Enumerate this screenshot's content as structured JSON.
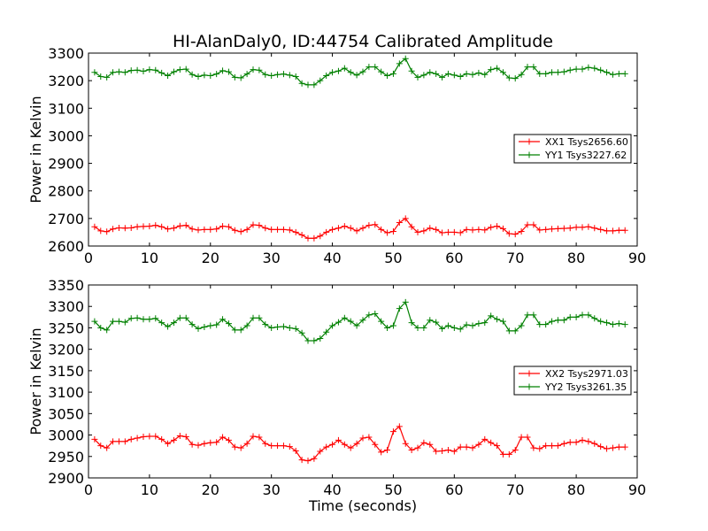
{
  "figure": {
    "title": "HI-AlanDaly0, ID:44754 Calibrated Amplitude",
    "xlabel": "Time (seconds)"
  },
  "chart_data": [
    {
      "type": "line",
      "title": "HI-AlanDaly0, ID:44754 Calibrated Amplitude",
      "xlabel": "",
      "ylabel": "Power in Kelvin",
      "xlim": [
        0,
        90
      ],
      "ylim": [
        2600,
        3300
      ],
      "xticks": [
        "0",
        "10",
        "20",
        "30",
        "40",
        "50",
        "60",
        "70",
        "80",
        "90"
      ],
      "yticks": [
        "2600",
        "2700",
        "2800",
        "2900",
        "3000",
        "3100",
        "3200",
        "3300"
      ],
      "grid": false,
      "legend_position": "right",
      "x": [
        1,
        2,
        3,
        4,
        5,
        6,
        7,
        8,
        9,
        10,
        11,
        12,
        13,
        14,
        15,
        16,
        17,
        18,
        19,
        20,
        21,
        22,
        23,
        24,
        25,
        26,
        27,
        28,
        29,
        30,
        31,
        32,
        33,
        34,
        35,
        36,
        37,
        38,
        39,
        40,
        41,
        42,
        43,
        44,
        45,
        46,
        47,
        48,
        49,
        50,
        51,
        52,
        53,
        54,
        55,
        56,
        57,
        58,
        59,
        60,
        61,
        62,
        63,
        64,
        65,
        66,
        67,
        68,
        69,
        70,
        71,
        72,
        73,
        74,
        75,
        76,
        77,
        78,
        79,
        80,
        81,
        82,
        83,
        84,
        85,
        86,
        87,
        88
      ],
      "series": [
        {
          "name": "XX1 Tsys2656.60",
          "color": "#ff0000",
          "values": [
            2670,
            2655,
            2652,
            2662,
            2666,
            2665,
            2666,
            2670,
            2671,
            2672,
            2675,
            2670,
            2662,
            2665,
            2673,
            2675,
            2662,
            2658,
            2660,
            2660,
            2662,
            2672,
            2670,
            2657,
            2652,
            2660,
            2677,
            2675,
            2665,
            2660,
            2660,
            2660,
            2658,
            2650,
            2640,
            2628,
            2628,
            2636,
            2650,
            2660,
            2665,
            2672,
            2665,
            2655,
            2665,
            2675,
            2678,
            2660,
            2648,
            2653,
            2685,
            2700,
            2670,
            2650,
            2655,
            2665,
            2660,
            2648,
            2650,
            2650,
            2648,
            2660,
            2658,
            2660,
            2658,
            2668,
            2672,
            2663,
            2645,
            2643,
            2653,
            2677,
            2677,
            2658,
            2660,
            2662,
            2663,
            2664,
            2665,
            2668,
            2668,
            2670,
            2665,
            2660,
            2655,
            2655,
            2657,
            2657
          ]
        },
        {
          "name": "YY1 Tsys3227.62",
          "color": "#008000",
          "values": [
            3230,
            3215,
            3212,
            3230,
            3232,
            3230,
            3237,
            3238,
            3234,
            3240,
            3238,
            3228,
            3218,
            3232,
            3240,
            3242,
            3222,
            3215,
            3220,
            3218,
            3224,
            3236,
            3232,
            3212,
            3210,
            3224,
            3240,
            3238,
            3222,
            3218,
            3222,
            3224,
            3220,
            3215,
            3190,
            3185,
            3185,
            3200,
            3218,
            3230,
            3235,
            3245,
            3230,
            3220,
            3232,
            3250,
            3250,
            3232,
            3218,
            3225,
            3262,
            3280,
            3235,
            3212,
            3220,
            3230,
            3225,
            3212,
            3225,
            3220,
            3215,
            3225,
            3222,
            3228,
            3222,
            3240,
            3245,
            3230,
            3210,
            3208,
            3222,
            3250,
            3250,
            3225,
            3225,
            3230,
            3230,
            3232,
            3238,
            3242,
            3242,
            3248,
            3245,
            3238,
            3230,
            3222,
            3225,
            3225
          ]
        }
      ]
    },
    {
      "type": "line",
      "title": "",
      "xlabel": "Time (seconds)",
      "ylabel": "Power in Kelvin",
      "xlim": [
        0,
        90
      ],
      "ylim": [
        2900,
        3350
      ],
      "xticks": [
        "0",
        "10",
        "20",
        "30",
        "40",
        "50",
        "60",
        "70",
        "80",
        "90"
      ],
      "yticks": [
        "2900",
        "2950",
        "3000",
        "3050",
        "3100",
        "3150",
        "3200",
        "3250",
        "3300",
        "3350"
      ],
      "grid": false,
      "legend_position": "right",
      "x": [
        1,
        2,
        3,
        4,
        5,
        6,
        7,
        8,
        9,
        10,
        11,
        12,
        13,
        14,
        15,
        16,
        17,
        18,
        19,
        20,
        21,
        22,
        23,
        24,
        25,
        26,
        27,
        28,
        29,
        30,
        31,
        32,
        33,
        34,
        35,
        36,
        37,
        38,
        39,
        40,
        41,
        42,
        43,
        44,
        45,
        46,
        47,
        48,
        49,
        50,
        51,
        52,
        53,
        54,
        55,
        56,
        57,
        58,
        59,
        60,
        61,
        62,
        63,
        64,
        65,
        66,
        67,
        68,
        69,
        70,
        71,
        72,
        73,
        74,
        75,
        76,
        77,
        78,
        79,
        80,
        81,
        82,
        83,
        84,
        85,
        86,
        87,
        88
      ],
      "series": [
        {
          "name": "XX2 Tsys2971.03",
          "color": "#ff0000",
          "values": [
            2990,
            2975,
            2970,
            2985,
            2985,
            2985,
            2990,
            2993,
            2996,
            2997,
            2997,
            2990,
            2980,
            2988,
            2998,
            2996,
            2978,
            2976,
            2980,
            2982,
            2983,
            2995,
            2988,
            2972,
            2970,
            2980,
            2997,
            2995,
            2980,
            2975,
            2975,
            2975,
            2973,
            2963,
            2942,
            2940,
            2945,
            2962,
            2972,
            2978,
            2988,
            2978,
            2970,
            2980,
            2993,
            2995,
            2978,
            2960,
            2965,
            3008,
            3020,
            2980,
            2965,
            2970,
            2982,
            2978,
            2962,
            2963,
            2965,
            2962,
            2972,
            2972,
            2970,
            2978,
            2990,
            2982,
            2975,
            2955,
            2955,
            2965,
            2995,
            2995,
            2970,
            2968,
            2975,
            2975,
            2975,
            2980,
            2983,
            2983,
            2988,
            2985,
            2980,
            2973,
            2968,
            2970,
            2972,
            2972
          ]
        },
        {
          "name": "YY2 Tsys3261.35",
          "color": "#008000",
          "values": [
            3265,
            3250,
            3245,
            3265,
            3265,
            3263,
            3272,
            3273,
            3270,
            3270,
            3272,
            3262,
            3253,
            3262,
            3273,
            3273,
            3258,
            3248,
            3252,
            3255,
            3257,
            3270,
            3260,
            3245,
            3245,
            3255,
            3273,
            3273,
            3258,
            3250,
            3252,
            3253,
            3250,
            3248,
            3238,
            3220,
            3220,
            3225,
            3240,
            3255,
            3263,
            3273,
            3265,
            3255,
            3268,
            3280,
            3283,
            3265,
            3250,
            3255,
            3295,
            3310,
            3262,
            3250,
            3250,
            3268,
            3263,
            3248,
            3255,
            3250,
            3247,
            3257,
            3255,
            3260,
            3262,
            3278,
            3270,
            3265,
            3243,
            3243,
            3255,
            3280,
            3280,
            3258,
            3258,
            3265,
            3268,
            3268,
            3275,
            3275,
            3280,
            3280,
            3272,
            3265,
            3262,
            3258,
            3260,
            3258
          ]
        }
      ]
    }
  ]
}
